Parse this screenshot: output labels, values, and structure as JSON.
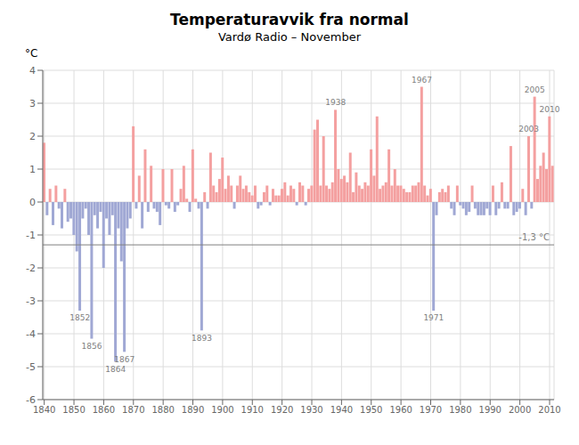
{
  "chart_data": {
    "type": "bar",
    "title": "Temperaturavvik fra normal",
    "subtitle": "Vardø Radio – November",
    "ylabel": "°C",
    "x": [
      1840,
      1841,
      1842,
      1843,
      1844,
      1845,
      1846,
      1847,
      1848,
      1849,
      1850,
      1851,
      1852,
      1853,
      1854,
      1855,
      1856,
      1857,
      1858,
      1859,
      1860,
      1861,
      1862,
      1863,
      1864,
      1865,
      1866,
      1867,
      1868,
      1869,
      1870,
      1871,
      1872,
      1873,
      1874,
      1875,
      1876,
      1877,
      1878,
      1879,
      1880,
      1881,
      1882,
      1883,
      1884,
      1885,
      1886,
      1887,
      1888,
      1889,
      1890,
      1891,
      1892,
      1893,
      1894,
      1895,
      1896,
      1897,
      1898,
      1899,
      1900,
      1901,
      1902,
      1903,
      1904,
      1905,
      1906,
      1907,
      1908,
      1909,
      1910,
      1911,
      1912,
      1913,
      1914,
      1915,
      1916,
      1917,
      1918,
      1919,
      1920,
      1921,
      1922,
      1923,
      1924,
      1925,
      1926,
      1927,
      1928,
      1929,
      1930,
      1931,
      1932,
      1933,
      1934,
      1935,
      1936,
      1937,
      1938,
      1939,
      1940,
      1941,
      1942,
      1943,
      1944,
      1945,
      1946,
      1947,
      1948,
      1949,
      1950,
      1951,
      1952,
      1953,
      1954,
      1955,
      1956,
      1957,
      1958,
      1959,
      1960,
      1961,
      1962,
      1963,
      1964,
      1965,
      1966,
      1967,
      1968,
      1969,
      1970,
      1971,
      1972,
      1973,
      1974,
      1975,
      1976,
      1977,
      1978,
      1979,
      1980,
      1981,
      1982,
      1983,
      1984,
      1985,
      1986,
      1987,
      1988,
      1989,
      1990,
      1991,
      1992,
      1993,
      1994,
      1995,
      1996,
      1997,
      1998,
      1999,
      2000,
      2001,
      2002,
      2003,
      2004,
      2005,
      2006,
      2007,
      2008,
      2009,
      2010,
      2011
    ],
    "values": [
      1.8,
      -0.4,
      0.4,
      -0.7,
      0.5,
      -0.2,
      -0.8,
      0.4,
      -0.6,
      -0.5,
      -1.0,
      -1.5,
      -3.3,
      -0.5,
      -0.2,
      -1.0,
      -4.15,
      -0.4,
      -0.8,
      -0.3,
      -2.0,
      -0.5,
      -1.0,
      -0.4,
      -4.85,
      -0.8,
      -1.8,
      -4.55,
      -0.8,
      -0.5,
      2.3,
      -0.2,
      0.8,
      -0.8,
      1.6,
      -0.3,
      1.1,
      -0.2,
      -0.3,
      -0.7,
      1.0,
      -0.1,
      -0.2,
      1.0,
      -0.3,
      -0.1,
      0.4,
      1.1,
      0.1,
      -0.3,
      1.6,
      0.1,
      -0.2,
      -3.9,
      0.3,
      -0.2,
      1.5,
      0.5,
      0.3,
      0.7,
      1.35,
      0.4,
      0.8,
      0.5,
      -0.2,
      0.5,
      0.8,
      0.4,
      0.5,
      0.3,
      0.2,
      0.5,
      -0.2,
      -0.1,
      0.3,
      0.5,
      -0.1,
      0.4,
      0.2,
      0.2,
      0.4,
      0.6,
      0.2,
      0.5,
      0.4,
      -0.1,
      0.6,
      0.5,
      -0.1,
      0.4,
      0.5,
      2.2,
      2.5,
      0.5,
      2.0,
      0.5,
      0.4,
      0.6,
      2.8,
      1.0,
      0.7,
      0.8,
      0.6,
      1.5,
      0.3,
      0.9,
      0.5,
      0.4,
      0.6,
      0.5,
      1.6,
      0.8,
      2.6,
      0.4,
      0.5,
      0.6,
      1.6,
      0.5,
      1.0,
      0.5,
      0.5,
      0.4,
      0.3,
      0.3,
      0.5,
      0.5,
      0.6,
      3.5,
      0.5,
      0.2,
      0.4,
      -3.3,
      -0.4,
      0.3,
      0.4,
      0.3,
      0.5,
      -0.2,
      -0.4,
      0.5,
      -0.1,
      -0.2,
      -0.4,
      -0.3,
      0.5,
      -0.2,
      -0.4,
      -0.4,
      -0.4,
      -0.2,
      -0.4,
      0.5,
      -0.4,
      -0.2,
      0.6,
      -0.2,
      -0.2,
      1.7,
      -0.4,
      -0.3,
      -0.2,
      0.4,
      -0.4,
      2.0,
      -0.2,
      3.2,
      0.7,
      1.1,
      1.5,
      1.0,
      2.6,
      1.1
    ],
    "colors": [
      "#f4a0a0",
      "#a0a8d4",
      "#f4a0a0",
      "#a0a8d4",
      "#f4a0a0",
      "#a0a8d4",
      "#a0a8d4",
      "#f4a0a0",
      "#a0a8d4",
      "#a0a8d4",
      "#a0a8d4",
      "#a0a8d4",
      "#a0a8d4",
      "#a0a8d4",
      "#a0a8d4",
      "#a0a8d4",
      "#a0a8d4",
      "#a0a8d4",
      "#a0a8d4",
      "#a0a8d4",
      "#a0a8d4",
      "#a0a8d4",
      "#a0a8d4",
      "#a0a8d4",
      "#a0a8d4",
      "#a0a8d4",
      "#a0a8d4",
      "#a0a8d4",
      "#a0a8d4",
      "#a0a8d4",
      "#f4a0a0",
      "#a0a8d4",
      "#f4a0a0",
      "#a0a8d4",
      "#f4a0a0",
      "#a0a8d4",
      "#f4a0a0",
      "#a0a8d4",
      "#a0a8d4",
      "#a0a8d4",
      "#f4a0a0",
      "#a0a8d4",
      "#a0a8d4",
      "#f4a0a0",
      "#a0a8d4",
      "#a0a8d4",
      "#f4a0a0",
      "#f4a0a0",
      "#f4a0a0",
      "#a0a8d4",
      "#f4a0a0",
      "#f4a0a0",
      "#a0a8d4",
      "#a0a8d4",
      "#f4a0a0",
      "#a0a8d4",
      "#f4a0a0",
      "#f4a0a0",
      "#f4a0a0",
      "#f4a0a0",
      "#f4a0a0",
      "#f4a0a0",
      "#f4a0a0",
      "#f4a0a0",
      "#a0a8d4",
      "#f4a0a0",
      "#f4a0a0",
      "#f4a0a0",
      "#f4a0a0",
      "#f4a0a0",
      "#f4a0a0",
      "#f4a0a0",
      "#a0a8d4",
      "#a0a8d4",
      "#f4a0a0",
      "#f4a0a0",
      "#a0a8d4",
      "#f4a0a0",
      "#f4a0a0",
      "#f4a0a0",
      "#f4a0a0",
      "#f4a0a0",
      "#f4a0a0",
      "#f4a0a0",
      "#f4a0a0",
      "#a0a8d4",
      "#f4a0a0",
      "#f4a0a0",
      "#a0a8d4",
      "#f4a0a0",
      "#f4a0a0",
      "#f4a0a0",
      "#f4a0a0",
      "#f4a0a0",
      "#f4a0a0",
      "#f4a0a0",
      "#f4a0a0",
      "#f4a0a0",
      "#f4a0a0",
      "#f4a0a0",
      "#f4a0a0",
      "#f4a0a0",
      "#f4a0a0",
      "#f4a0a0",
      "#f4a0a0",
      "#f4a0a0",
      "#f4a0a0",
      "#f4a0a0",
      "#f4a0a0",
      "#f4a0a0",
      "#f4a0a0",
      "#f4a0a0",
      "#f4a0a0",
      "#f4a0a0",
      "#f4a0a0",
      "#f4a0a0",
      "#f4a0a0",
      "#f4a0a0",
      "#f4a0a0",
      "#f4a0a0",
      "#f4a0a0",
      "#f4a0a0",
      "#f4a0a0",
      "#f4a0a0",
      "#f4a0a0",
      "#f4a0a0",
      "#f4a0a0",
      "#f4a0a0",
      "#f4a0a0",
      "#f4a0a0",
      "#f4a0a0",
      "#a0a8d4",
      "#a0a8d4",
      "#f4a0a0",
      "#f4a0a0",
      "#f4a0a0",
      "#f4a0a0",
      "#a0a8d4",
      "#a0a8d4",
      "#f4a0a0",
      "#a0a8d4",
      "#a0a8d4",
      "#a0a8d4",
      "#a0a8d4",
      "#f4a0a0",
      "#a0a8d4",
      "#a0a8d4",
      "#a0a8d4",
      "#a0a8d4",
      "#a0a8d4",
      "#a0a8d4",
      "#f4a0a0",
      "#a0a8d4",
      "#a0a8d4",
      "#f4a0a0",
      "#a0a8d4",
      "#a0a8d4",
      "#f4a0a0",
      "#a0a8d4",
      "#a0a8d4",
      "#a0a8d4",
      "#f4a0a0",
      "#a0a8d4",
      "#f4a0a0",
      "#a0a8d4",
      "#f4a0a0",
      "#f4a0a0",
      "#f4a0a0",
      "#f4a0a0",
      "#f4a0a0",
      "#f4a0a0",
      "#f4a0a0"
    ],
    "xlim": [
      1839.5,
      2011.5
    ],
    "xticks": [
      1840,
      1850,
      1860,
      1870,
      1880,
      1890,
      1900,
      1910,
      1920,
      1930,
      1940,
      1950,
      1960,
      1970,
      1980,
      1990,
      2000,
      2010
    ],
    "ylim": [
      -6.0,
      4.0
    ],
    "yticks": [
      -6,
      -5,
      -4,
      -3,
      -2,
      -1,
      0,
      1,
      2,
      3,
      4
    ],
    "grid": true,
    "reference_lines": [
      {
        "value": -1.3,
        "label": "-1,3 °C",
        "color": "#808080"
      }
    ],
    "annotations": [
      {
        "x": 1852,
        "text": "1852",
        "color": "#808080"
      },
      {
        "x": 1856,
        "text": "1856",
        "color": "#808080"
      },
      {
        "x": 1864,
        "text": "1864",
        "color": "#808080"
      },
      {
        "x": 1867,
        "text": "1867",
        "color": "#808080"
      },
      {
        "x": 1893,
        "text": "1893",
        "color": "#808080"
      },
      {
        "x": 1938,
        "text": "1938",
        "color": "#808080"
      },
      {
        "x": 1967,
        "text": "1967",
        "color": "#808080"
      },
      {
        "x": 1971,
        "text": "1971",
        "color": "#808080"
      },
      {
        "x": 2003,
        "text": "2003",
        "color": "#808080"
      },
      {
        "x": 2005,
        "text": "2005",
        "color": "#808080"
      },
      {
        "x": 2010,
        "text": "2010",
        "color": "#808080"
      }
    ]
  }
}
